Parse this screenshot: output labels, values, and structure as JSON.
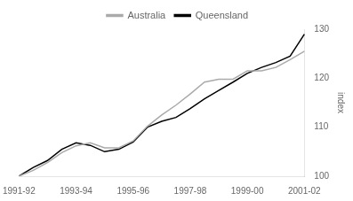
{
  "chart_data": {
    "type": "line",
    "categories": [
      "1991-92",
      null,
      null,
      null,
      "1993-94",
      null,
      null,
      null,
      "1995-96",
      null,
      null,
      null,
      "1997-98",
      null,
      null,
      null,
      "1999-00",
      null,
      null,
      null,
      "2001-02"
    ],
    "series": [
      {
        "name": "Australia",
        "color": "#aaaaaa",
        "values": [
          100.0,
          101.2,
          102.8,
          104.8,
          106.2,
          106.8,
          105.8,
          105.8,
          107.2,
          110.2,
          112.5,
          114.5,
          116.8,
          119.2,
          119.8,
          119.8,
          121.5,
          121.5,
          122.2,
          123.8,
          125.5
        ]
      },
      {
        "name": "Queensland",
        "color": "#000000",
        "values": [
          100.0,
          101.8,
          103.2,
          105.5,
          106.8,
          106.3,
          105.0,
          105.5,
          107.0,
          110.0,
          111.2,
          112.0,
          113.8,
          115.8,
          117.5,
          119.2,
          121.0,
          122.2,
          123.2,
          124.5,
          129.0
        ]
      }
    ],
    "ylabel": "index",
    "ylim": [
      100,
      130
    ],
    "yticks": [
      100,
      110,
      120,
      130
    ],
    "grid": false,
    "legend": "top"
  }
}
